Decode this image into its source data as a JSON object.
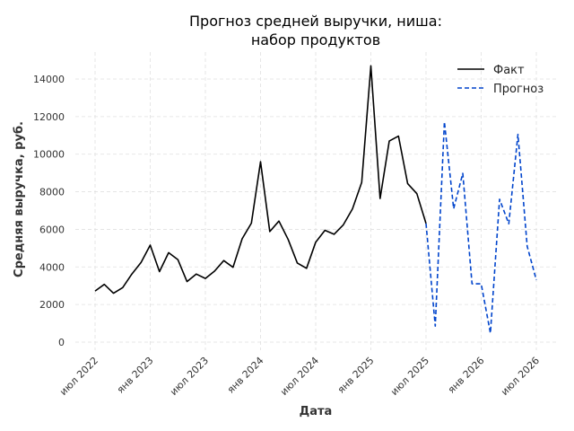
{
  "chart_data": {
    "type": "line",
    "title_line1": "Прогноз средней выручки, ниша:",
    "title_line2": "набор продуктов",
    "xlabel": "Дата",
    "ylabel": "Средняя выручка, руб.",
    "ylim": [
      0,
      15000
    ],
    "y_ticks": [
      0,
      2000,
      4000,
      6000,
      8000,
      10000,
      12000,
      14000
    ],
    "y_tick_labels": [
      "0",
      "2000",
      "4000",
      "6000",
      "8000",
      "10000",
      "12000",
      "14000"
    ],
    "x_ticks": [
      "2022-07",
      "2023-01",
      "2023-07",
      "2024-01",
      "2024-07",
      "2025-01",
      "2025-07",
      "2026-01",
      "2026-07"
    ],
    "x_tick_labels": [
      "июл 2022",
      "янв 2023",
      "июл 2023",
      "янв 2024",
      "июл 2024",
      "янв 2025",
      "июл 2025",
      "янв 2026",
      "июл 2026"
    ],
    "grid": true,
    "legend_position": "top-right",
    "series": [
      {
        "name": "Факт",
        "color": "#000000",
        "style": "solid",
        "x": [
          "2022-07",
          "2022-08",
          "2022-09",
          "2022-10",
          "2022-11",
          "2022-12",
          "2023-01",
          "2023-02",
          "2023-03",
          "2023-04",
          "2023-05",
          "2023-06",
          "2023-07",
          "2023-08",
          "2023-09",
          "2023-10",
          "2023-11",
          "2023-12",
          "2024-01",
          "2024-02",
          "2024-03",
          "2024-04",
          "2024-05",
          "2024-06",
          "2024-07",
          "2024-08",
          "2024-09",
          "2024-10",
          "2024-11",
          "2024-12",
          "2025-01",
          "2025-02",
          "2025-03",
          "2025-04",
          "2025-05",
          "2025-06",
          "2025-07"
        ],
        "values": [
          2720,
          3070,
          2600,
          2900,
          3620,
          4240,
          5160,
          3750,
          4760,
          4390,
          3220,
          3620,
          3390,
          3780,
          4340,
          3980,
          5500,
          6330,
          9600,
          5880,
          6440,
          5460,
          4210,
          3930,
          5320,
          5950,
          5740,
          6240,
          7090,
          8500,
          14700,
          7640,
          10700,
          10960,
          8440,
          7900,
          6310
        ]
      },
      {
        "name": "Прогноз",
        "color": "#0044cc",
        "style": "dashed",
        "x": [
          "2025-07",
          "2025-08",
          "2025-09",
          "2025-10",
          "2025-11",
          "2025-12",
          "2026-01",
          "2026-02",
          "2026-03",
          "2026-04",
          "2026-05",
          "2026-06",
          "2026-07"
        ],
        "values": [
          6310,
          850,
          11720,
          7100,
          8980,
          3100,
          3100,
          480,
          7600,
          6300,
          11050,
          5100,
          3300
        ]
      }
    ]
  }
}
